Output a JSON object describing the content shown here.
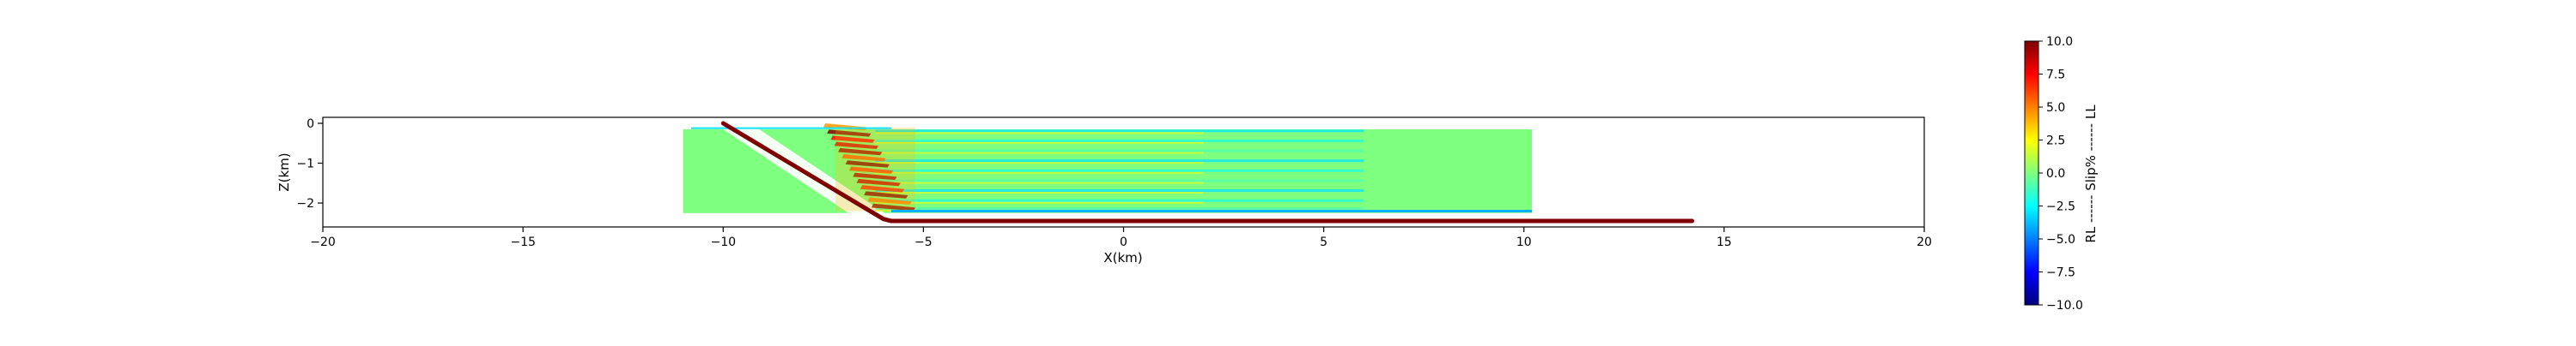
{
  "chart_data": {
    "type": "heatmap",
    "xlabel": "X(km)",
    "ylabel": "Z(km)",
    "xlim": [
      -20,
      20
    ],
    "ylim": [
      -2.6,
      0.15
    ],
    "xticks": [
      -20,
      -15,
      -10,
      -5,
      0,
      5,
      10,
      15,
      20
    ],
    "xtick_labels": [
      "−20",
      "−15",
      "−10",
      "−5",
      "0",
      "5",
      "10",
      "15",
      "20"
    ],
    "yticks": [
      0,
      -1,
      -2
    ],
    "ytick_labels": [
      "0",
      "−1",
      "−2"
    ],
    "grid": false,
    "slip_field": {
      "x_range": [
        -11,
        10.2
      ],
      "z_range": [
        -2.25,
        -0.15
      ],
      "background_slip": 0.0,
      "high_slip_zone_x": [
        -7.2,
        -5.2
      ],
      "high_slip_max": 10.0,
      "layer_depths": [
        -0.2,
        -0.45,
        -0.7,
        -0.95,
        -1.2,
        -1.45,
        -1.7,
        -1.95,
        -2.15
      ],
      "bottom_band_slip": -4.0
    },
    "fault_trace": {
      "color": "#7f0000",
      "points": [
        [
          -10,
          0
        ],
        [
          -6,
          -2.4
        ],
        [
          -5.8,
          -2.45
        ],
        [
          14.2,
          -2.45
        ]
      ]
    },
    "colorbar": {
      "label": "RL ------ Slip% ------ LL",
      "range": [
        -10,
        10
      ],
      "ticks": [
        10.0,
        7.5,
        5.0,
        2.5,
        0.0,
        -2.5,
        -5.0,
        -7.5,
        -10.0
      ],
      "tick_labels": [
        "10.0",
        "7.5",
        "5.0",
        "2.5",
        "0.0",
        "−2.5",
        "−5.0",
        "−7.5",
        "−10.0"
      ],
      "colormap": "jet",
      "stops": [
        "#00007f",
        "#0000ff",
        "#007fff",
        "#00ffff",
        "#7fff7f",
        "#ffff00",
        "#ff7f00",
        "#ff0000",
        "#7f0000"
      ]
    }
  }
}
